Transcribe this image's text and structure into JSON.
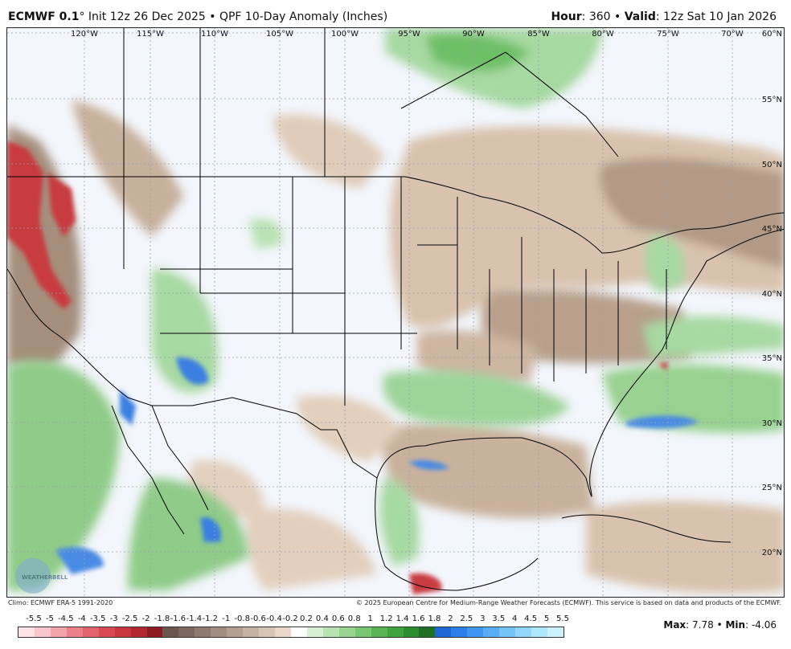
{
  "header": {
    "model": "ECMWF 0.1",
    "degree_symbol": "°",
    "init": "Init 12z 26 Dec 2025",
    "separator": "•",
    "product": "QPF 10-Day Anomaly (Inches)",
    "hour_label": "Hour",
    "hour_value": ": 360",
    "valid_label": "Valid",
    "valid_value": ": 12z Sat 10 Jan 2026"
  },
  "longitude_labels": [
    "120°W",
    "115°W",
    "110°W",
    "105°W",
    "100°W",
    "95°W",
    "90°W",
    "85°W",
    "80°W",
    "75°W",
    "70°W"
  ],
  "latitude_labels": [
    "60°N",
    "55°N",
    "50°N",
    "45°N",
    "40°N",
    "35°N",
    "30°N",
    "25°N",
    "20°N"
  ],
  "credits": {
    "climo": "Climo: ECMWF ERA-5 1991-2020",
    "copyright": "© 2025 European Centre for Medium-Range Weather Forecasts (ECMWF). This service is based on data and products of the ECMWF."
  },
  "watermark": "WEATHERBELL",
  "colorbar": {
    "labels": [
      "-5.5",
      "-5",
      "-4.5",
      "-4",
      "-3.5",
      "-3",
      "-2.5",
      "-2",
      "-1.8",
      "-1.6",
      "-1.4",
      "-1.2",
      "-1",
      "-0.8",
      "-0.6",
      "-0.4",
      "-0.2",
      "0.2",
      "0.4",
      "0.6",
      "0.8",
      "1",
      "1.2",
      "1.4",
      "1.6",
      "1.8",
      "2",
      "2.5",
      "3",
      "3.5",
      "4",
      "4.5",
      "5",
      "5.5"
    ],
    "colors": [
      "#fde3e6",
      "#f8c6cc",
      "#f2a3ab",
      "#eb8089",
      "#e3636d",
      "#d84a54",
      "#c93640",
      "#b22730",
      "#8d1c22",
      "#6d5550",
      "#7d665f",
      "#8f7970",
      "#a28c82",
      "#b59f93",
      "#c6b2a5",
      "#d7c4b5",
      "#e9d8c7",
      "#ffffff",
      "#d8efd6",
      "#b9e2b3",
      "#98d490",
      "#79c672",
      "#5ab654",
      "#3fa43d",
      "#2b8c30",
      "#1f7025",
      "#1f66d6",
      "#2d7fe8",
      "#3f96f0",
      "#58aef4",
      "#74c4f7",
      "#90d7fa",
      "#aee6fc",
      "#caf1fd"
    ]
  },
  "stats": {
    "max_label": "Max",
    "max_value": ": 7.78",
    "min_label": "Min",
    "min_value": ": -4.06"
  }
}
